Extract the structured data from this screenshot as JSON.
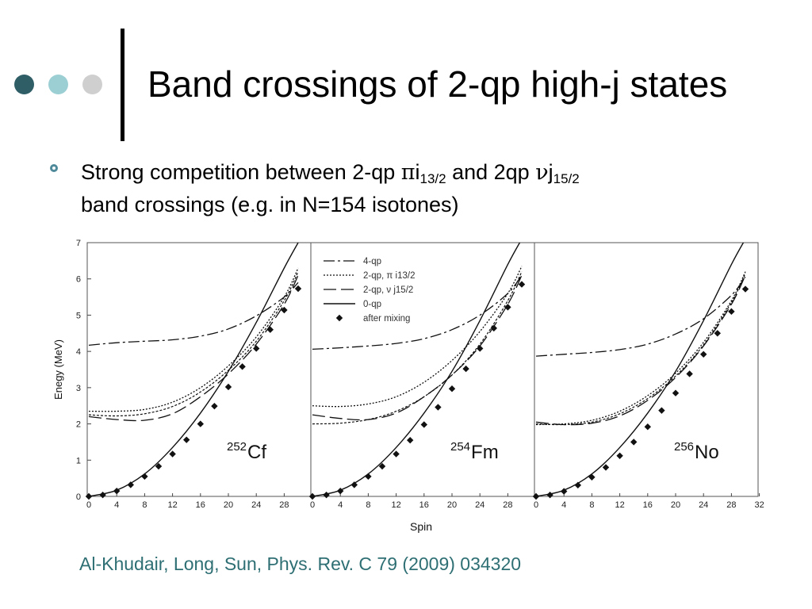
{
  "slide": {
    "title": "Band crossings of 2-qp high-j states",
    "bullet": {
      "part1": "Strong competition between 2-qp ",
      "pi": "π",
      "i": "i",
      "sub1": "13/2",
      "part2": " and 2qp ",
      "nu": "ν",
      "j": "j",
      "sub2": "15/2",
      "line2": "band crossings (e.g. in N=154 isotones)"
    },
    "citation": "Al-Khudair, Long, Sun, Phys. Rev. C 79 (2009) 034320",
    "colors": {
      "dot1": "#2f5e66",
      "dot2": "#9ccfd4",
      "dot3": "#cfcfcf",
      "bullet": "#4f8a9a",
      "citation": "#2e6f74"
    }
  },
  "chart_data": {
    "type": "line",
    "ylabel": "Enegy (MeV)",
    "xlabel": "Spin",
    "ylim": [
      0,
      7
    ],
    "yticks": [
      "0",
      "1",
      "2",
      "3",
      "4",
      "5",
      "6",
      "7"
    ],
    "legend": [
      "4-qp",
      "2-qp, π i13/2",
      "2-qp, ν j15/2",
      "0-qp",
      "after mixing"
    ],
    "panels": [
      {
        "nucleus_mass": "252",
        "nucleus": "Cf",
        "xticks": [
          "0",
          "4",
          "8",
          "12",
          "16",
          "20",
          "24",
          "28"
        ],
        "series": {
          "qp4": [
            [
              0,
              4.17
            ],
            [
              4,
              4.24
            ],
            [
              8,
              4.28
            ],
            [
              12,
              4.32
            ],
            [
              16,
              4.42
            ],
            [
              20,
              4.62
            ],
            [
              24,
              4.98
            ],
            [
              28,
              5.5
            ],
            [
              30,
              5.9
            ]
          ],
          "pi": [
            [
              0,
              2.35
            ],
            [
              4,
              2.35
            ],
            [
              8,
              2.4
            ],
            [
              12,
              2.6
            ],
            [
              16,
              3.0
            ],
            [
              20,
              3.6
            ],
            [
              24,
              4.4
            ],
            [
              28,
              5.5
            ],
            [
              30,
              6.3
            ]
          ],
          "nu": [
            [
              0,
              2.25
            ],
            [
              4,
              2.22
            ],
            [
              8,
              2.28
            ],
            [
              12,
              2.48
            ],
            [
              16,
              2.88
            ],
            [
              20,
              3.48
            ],
            [
              24,
              4.28
            ],
            [
              28,
              5.4
            ],
            [
              30,
              6.2
            ]
          ],
          "nu_dash": [
            [
              0,
              2.2
            ],
            [
              4,
              2.12
            ],
            [
              8,
              2.1
            ],
            [
              12,
              2.28
            ],
            [
              16,
              2.75
            ],
            [
              20,
              3.38
            ],
            [
              24,
              4.2
            ],
            [
              28,
              5.3
            ],
            [
              30,
              6.1
            ]
          ],
          "qp0": [
            [
              0,
              0
            ],
            [
              4,
              0.17
            ],
            [
              8,
              0.62
            ],
            [
              12,
              1.35
            ],
            [
              16,
              2.3
            ],
            [
              20,
              3.45
            ],
            [
              24,
              4.8
            ],
            [
              28,
              6.3
            ],
            [
              30,
              7.0
            ]
          ],
          "mixing": [
            [
              0,
              0
            ],
            [
              2,
              0.04
            ],
            [
              4,
              0.15
            ],
            [
              6,
              0.32
            ],
            [
              8,
              0.55
            ],
            [
              10,
              0.83
            ],
            [
              12,
              1.17
            ],
            [
              14,
              1.56
            ],
            [
              16,
              2.0
            ],
            [
              18,
              2.49
            ],
            [
              20,
              3.02
            ],
            [
              22,
              3.58
            ],
            [
              24,
              4.08
            ],
            [
              26,
              4.6
            ],
            [
              28,
              5.14
            ],
            [
              30,
              5.73
            ]
          ]
        }
      },
      {
        "nucleus_mass": "254",
        "nucleus": "Fm",
        "xticks": [
          "0",
          "4",
          "8",
          "12",
          "16",
          "20",
          "24",
          "28"
        ],
        "series": {
          "qp4": [
            [
              0,
              4.06
            ],
            [
              4,
              4.1
            ],
            [
              8,
              4.15
            ],
            [
              12,
              4.22
            ],
            [
              16,
              4.35
            ],
            [
              20,
              4.6
            ],
            [
              24,
              5.0
            ],
            [
              28,
              5.6
            ],
            [
              30,
              6.1
            ]
          ],
          "pi": [
            [
              0,
              2.5
            ],
            [
              4,
              2.48
            ],
            [
              8,
              2.55
            ],
            [
              12,
              2.75
            ],
            [
              16,
              3.15
            ],
            [
              20,
              3.75
            ],
            [
              24,
              4.55
            ],
            [
              28,
              5.6
            ],
            [
              30,
              6.35
            ]
          ],
          "nu": [
            [
              0,
              2.0
            ],
            [
              4,
              2.02
            ],
            [
              8,
              2.12
            ],
            [
              12,
              2.35
            ],
            [
              16,
              2.75
            ],
            [
              20,
              3.35
            ],
            [
              24,
              4.2
            ],
            [
              28,
              5.4
            ],
            [
              30,
              6.2
            ]
          ],
          "nu_dash": [
            [
              0,
              2.25
            ],
            [
              4,
              2.15
            ],
            [
              8,
              2.12
            ],
            [
              12,
              2.3
            ],
            [
              16,
              2.75
            ],
            [
              20,
              3.35
            ],
            [
              24,
              4.15
            ],
            [
              28,
              5.3
            ],
            [
              30,
              6.1
            ]
          ],
          "qp0": [
            [
              0,
              0
            ],
            [
              4,
              0.17
            ],
            [
              8,
              0.62
            ],
            [
              12,
              1.35
            ],
            [
              16,
              2.3
            ],
            [
              20,
              3.45
            ],
            [
              24,
              4.85
            ],
            [
              28,
              6.4
            ],
            [
              30,
              7.1
            ]
          ],
          "mixing": [
            [
              0,
              0
            ],
            [
              2,
              0.04
            ],
            [
              4,
              0.15
            ],
            [
              6,
              0.32
            ],
            [
              8,
              0.55
            ],
            [
              10,
              0.83
            ],
            [
              12,
              1.17
            ],
            [
              14,
              1.55
            ],
            [
              16,
              1.98
            ],
            [
              18,
              2.46
            ],
            [
              20,
              2.97
            ],
            [
              22,
              3.52
            ],
            [
              24,
              4.08
            ],
            [
              26,
              4.64
            ],
            [
              28,
              5.22
            ],
            [
              30,
              5.85
            ]
          ]
        }
      },
      {
        "nucleus_mass": "256",
        "nucleus": "No",
        "xticks": [
          "0",
          "4",
          "8",
          "12",
          "16",
          "20",
          "24",
          "28",
          "32"
        ],
        "series": {
          "qp4": [
            [
              0,
              3.87
            ],
            [
              4,
              3.92
            ],
            [
              8,
              3.97
            ],
            [
              12,
              4.05
            ],
            [
              16,
              4.2
            ],
            [
              20,
              4.48
            ],
            [
              24,
              4.9
            ],
            [
              28,
              5.55
            ],
            [
              30,
              6.05
            ]
          ],
          "pi": [
            [
              0,
              1.98
            ],
            [
              4,
              2.0
            ],
            [
              8,
              2.1
            ],
            [
              12,
              2.35
            ],
            [
              16,
              2.78
            ],
            [
              20,
              3.4
            ],
            [
              24,
              4.25
            ],
            [
              28,
              5.4
            ],
            [
              30,
              6.2
            ]
          ],
          "nu": [
            [
              0,
              2.0
            ],
            [
              4,
              1.98
            ],
            [
              8,
              2.05
            ],
            [
              12,
              2.28
            ],
            [
              16,
              2.7
            ],
            [
              20,
              3.32
            ],
            [
              24,
              4.18
            ],
            [
              28,
              5.35
            ],
            [
              30,
              6.15
            ]
          ],
          "nu_dash": [
            [
              0,
              2.05
            ],
            [
              4,
              1.98
            ],
            [
              8,
              2.02
            ],
            [
              12,
              2.22
            ],
            [
              16,
              2.65
            ],
            [
              20,
              3.28
            ],
            [
              24,
              4.15
            ],
            [
              28,
              5.3
            ],
            [
              30,
              6.1
            ]
          ],
          "qp0": [
            [
              0,
              0
            ],
            [
              4,
              0.17
            ],
            [
              8,
              0.62
            ],
            [
              12,
              1.35
            ],
            [
              16,
              2.3
            ],
            [
              20,
              3.45
            ],
            [
              24,
              4.85
            ],
            [
              28,
              6.4
            ],
            [
              30,
              7.1
            ]
          ],
          "mixing": [
            [
              0,
              0
            ],
            [
              2,
              0.04
            ],
            [
              4,
              0.14
            ],
            [
              6,
              0.31
            ],
            [
              8,
              0.53
            ],
            [
              10,
              0.8
            ],
            [
              12,
              1.12
            ],
            [
              14,
              1.5
            ],
            [
              16,
              1.92
            ],
            [
              18,
              2.37
            ],
            [
              20,
              2.85
            ],
            [
              22,
              3.38
            ],
            [
              24,
              3.92
            ],
            [
              26,
              4.5
            ],
            [
              28,
              5.1
            ],
            [
              30,
              5.72
            ]
          ]
        }
      }
    ]
  }
}
